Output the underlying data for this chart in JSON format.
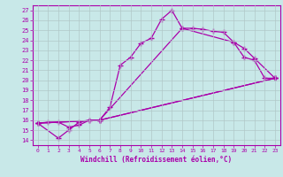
{
  "xlabel": "Windchill (Refroidissement éolien,°C)",
  "bg_color": "#c8e8e8",
  "grid_color": "#b0c8c8",
  "line_color": "#aa00aa",
  "xlim": [
    -0.5,
    23.5
  ],
  "ylim": [
    13.5,
    27.5
  ],
  "xticks": [
    0,
    1,
    2,
    3,
    4,
    5,
    6,
    7,
    8,
    9,
    10,
    11,
    12,
    13,
    14,
    15,
    16,
    17,
    18,
    19,
    20,
    21,
    22,
    23
  ],
  "yticks": [
    14,
    15,
    16,
    17,
    18,
    19,
    20,
    21,
    22,
    23,
    24,
    25,
    26,
    27
  ],
  "lines": [
    {
      "x": [
        0,
        1,
        2,
        3,
        4,
        5,
        6,
        7,
        8,
        9,
        10,
        11,
        12,
        13,
        14,
        15,
        16,
        17,
        18,
        19,
        20,
        21,
        22,
        23
      ],
      "y": [
        15.7,
        15.8,
        15.8,
        15.3,
        15.5,
        16.0,
        16.0,
        17.3,
        21.5,
        22.3,
        23.7,
        24.2,
        26.1,
        27.0,
        25.2,
        25.2,
        25.1,
        24.9,
        24.8,
        23.8,
        22.3,
        22.0,
        20.2,
        20.2
      ]
    },
    {
      "x": [
        0,
        2,
        3,
        4,
        5,
        6,
        23
      ],
      "y": [
        15.7,
        14.2,
        15.0,
        15.8,
        16.0,
        16.0,
        20.2
      ]
    },
    {
      "x": [
        0,
        6,
        14,
        19,
        20,
        21,
        23
      ],
      "y": [
        15.7,
        16.0,
        25.2,
        23.8,
        23.2,
        22.2,
        20.2
      ]
    },
    {
      "x": [
        0,
        6,
        23
      ],
      "y": [
        15.7,
        16.0,
        20.2
      ]
    }
  ]
}
